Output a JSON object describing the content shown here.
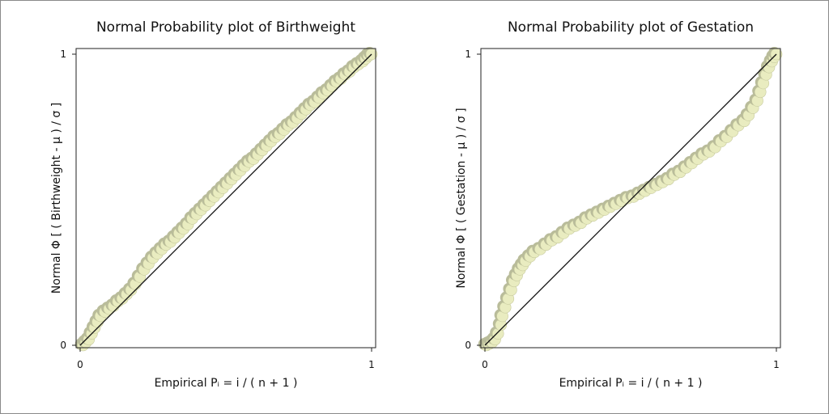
{
  "chart_data": [
    {
      "type": "scatter",
      "title": "Normal Probability plot of Birthweight",
      "xlabel": "Empirical Pᵢ = i / ( n + 1 )",
      "ylabel": "Normal Φ [ ( Birthweight - μ ) / σ ]",
      "xlim": [
        0,
        1
      ],
      "ylim": [
        0,
        1
      ],
      "xticks": [
        "0",
        "1"
      ],
      "yticks": [
        "0",
        "1"
      ],
      "reference_line": [
        [
          0,
          0
        ],
        [
          1,
          1
        ]
      ],
      "colors": {
        "marker_fill": "#e9ecc0",
        "marker_shadow": "#b9bc9a",
        "line": "#111111"
      },
      "points": [
        [
          0.01,
          0.0
        ],
        [
          0.02,
          0.01
        ],
        [
          0.03,
          0.02
        ],
        [
          0.04,
          0.04
        ],
        [
          0.05,
          0.06
        ],
        [
          0.06,
          0.08
        ],
        [
          0.07,
          0.1
        ],
        [
          0.085,
          0.115
        ],
        [
          0.1,
          0.125
        ],
        [
          0.115,
          0.135
        ],
        [
          0.13,
          0.15
        ],
        [
          0.145,
          0.16
        ],
        [
          0.16,
          0.175
        ],
        [
          0.175,
          0.19
        ],
        [
          0.19,
          0.21
        ],
        [
          0.205,
          0.235
        ],
        [
          0.22,
          0.26
        ],
        [
          0.235,
          0.28
        ],
        [
          0.25,
          0.3
        ],
        [
          0.265,
          0.315
        ],
        [
          0.28,
          0.33
        ],
        [
          0.295,
          0.345
        ],
        [
          0.31,
          0.355
        ],
        [
          0.325,
          0.37
        ],
        [
          0.34,
          0.385
        ],
        [
          0.355,
          0.4
        ],
        [
          0.37,
          0.415
        ],
        [
          0.385,
          0.435
        ],
        [
          0.4,
          0.45
        ],
        [
          0.415,
          0.465
        ],
        [
          0.43,
          0.48
        ],
        [
          0.445,
          0.495
        ],
        [
          0.46,
          0.51
        ],
        [
          0.475,
          0.525
        ],
        [
          0.49,
          0.54
        ],
        [
          0.505,
          0.555
        ],
        [
          0.52,
          0.57
        ],
        [
          0.535,
          0.585
        ],
        [
          0.55,
          0.6
        ],
        [
          0.565,
          0.615
        ],
        [
          0.58,
          0.63
        ],
        [
          0.595,
          0.64
        ],
        [
          0.61,
          0.655
        ],
        [
          0.625,
          0.67
        ],
        [
          0.64,
          0.685
        ],
        [
          0.655,
          0.7
        ],
        [
          0.67,
          0.715
        ],
        [
          0.685,
          0.725
        ],
        [
          0.7,
          0.74
        ],
        [
          0.715,
          0.755
        ],
        [
          0.73,
          0.765
        ],
        [
          0.745,
          0.78
        ],
        [
          0.76,
          0.795
        ],
        [
          0.775,
          0.81
        ],
        [
          0.79,
          0.825
        ],
        [
          0.805,
          0.835
        ],
        [
          0.82,
          0.85
        ],
        [
          0.835,
          0.865
        ],
        [
          0.85,
          0.875
        ],
        [
          0.865,
          0.89
        ],
        [
          0.88,
          0.905
        ],
        [
          0.895,
          0.915
        ],
        [
          0.91,
          0.93
        ],
        [
          0.925,
          0.94
        ],
        [
          0.94,
          0.955
        ],
        [
          0.955,
          0.965
        ],
        [
          0.97,
          0.975
        ],
        [
          0.98,
          0.985
        ],
        [
          0.99,
          0.995
        ],
        [
          1.0,
          1.0
        ]
      ]
    },
    {
      "type": "scatter",
      "title": "Normal Probability plot of Gestation",
      "xlabel": "Empirical Pᵢ = i / ( n + 1 )",
      "ylabel": "Normal Φ [ ( Gestation - μ ) / σ ]",
      "xlim": [
        0,
        1
      ],
      "ylim": [
        0,
        1
      ],
      "xticks": [
        "0",
        "1"
      ],
      "yticks": [
        "0",
        "1"
      ],
      "reference_line": [
        [
          0,
          0
        ],
        [
          1,
          1
        ]
      ],
      "colors": {
        "marker_fill": "#e9ecc0",
        "marker_shadow": "#b9bc9a",
        "line": "#111111"
      },
      "points": [
        [
          0.005,
          0.0
        ],
        [
          0.015,
          0.005
        ],
        [
          0.025,
          0.01
        ],
        [
          0.035,
          0.02
        ],
        [
          0.045,
          0.04
        ],
        [
          0.055,
          0.07
        ],
        [
          0.06,
          0.1
        ],
        [
          0.07,
          0.13
        ],
        [
          0.08,
          0.16
        ],
        [
          0.09,
          0.19
        ],
        [
          0.1,
          0.22
        ],
        [
          0.11,
          0.24
        ],
        [
          0.12,
          0.26
        ],
        [
          0.13,
          0.275
        ],
        [
          0.14,
          0.29
        ],
        [
          0.155,
          0.305
        ],
        [
          0.17,
          0.32
        ],
        [
          0.19,
          0.33
        ],
        [
          0.21,
          0.345
        ],
        [
          0.23,
          0.36
        ],
        [
          0.25,
          0.37
        ],
        [
          0.27,
          0.385
        ],
        [
          0.29,
          0.4
        ],
        [
          0.31,
          0.41
        ],
        [
          0.33,
          0.42
        ],
        [
          0.35,
          0.435
        ],
        [
          0.37,
          0.445
        ],
        [
          0.39,
          0.455
        ],
        [
          0.41,
          0.465
        ],
        [
          0.43,
          0.475
        ],
        [
          0.45,
          0.485
        ],
        [
          0.47,
          0.495
        ],
        [
          0.49,
          0.505
        ],
        [
          0.51,
          0.51
        ],
        [
          0.53,
          0.52
        ],
        [
          0.55,
          0.53
        ],
        [
          0.57,
          0.54
        ],
        [
          0.59,
          0.55
        ],
        [
          0.61,
          0.56
        ],
        [
          0.63,
          0.57
        ],
        [
          0.65,
          0.585
        ],
        [
          0.67,
          0.595
        ],
        [
          0.69,
          0.61
        ],
        [
          0.71,
          0.625
        ],
        [
          0.73,
          0.64
        ],
        [
          0.75,
          0.655
        ],
        [
          0.77,
          0.665
        ],
        [
          0.79,
          0.68
        ],
        [
          0.81,
          0.7
        ],
        [
          0.83,
          0.715
        ],
        [
          0.85,
          0.735
        ],
        [
          0.87,
          0.755
        ],
        [
          0.89,
          0.77
        ],
        [
          0.905,
          0.79
        ],
        [
          0.92,
          0.815
        ],
        [
          0.935,
          0.84
        ],
        [
          0.945,
          0.87
        ],
        [
          0.955,
          0.9
        ],
        [
          0.965,
          0.93
        ],
        [
          0.975,
          0.955
        ],
        [
          0.985,
          0.975
        ],
        [
          0.993,
          0.99
        ],
        [
          1.0,
          1.0
        ]
      ]
    }
  ]
}
